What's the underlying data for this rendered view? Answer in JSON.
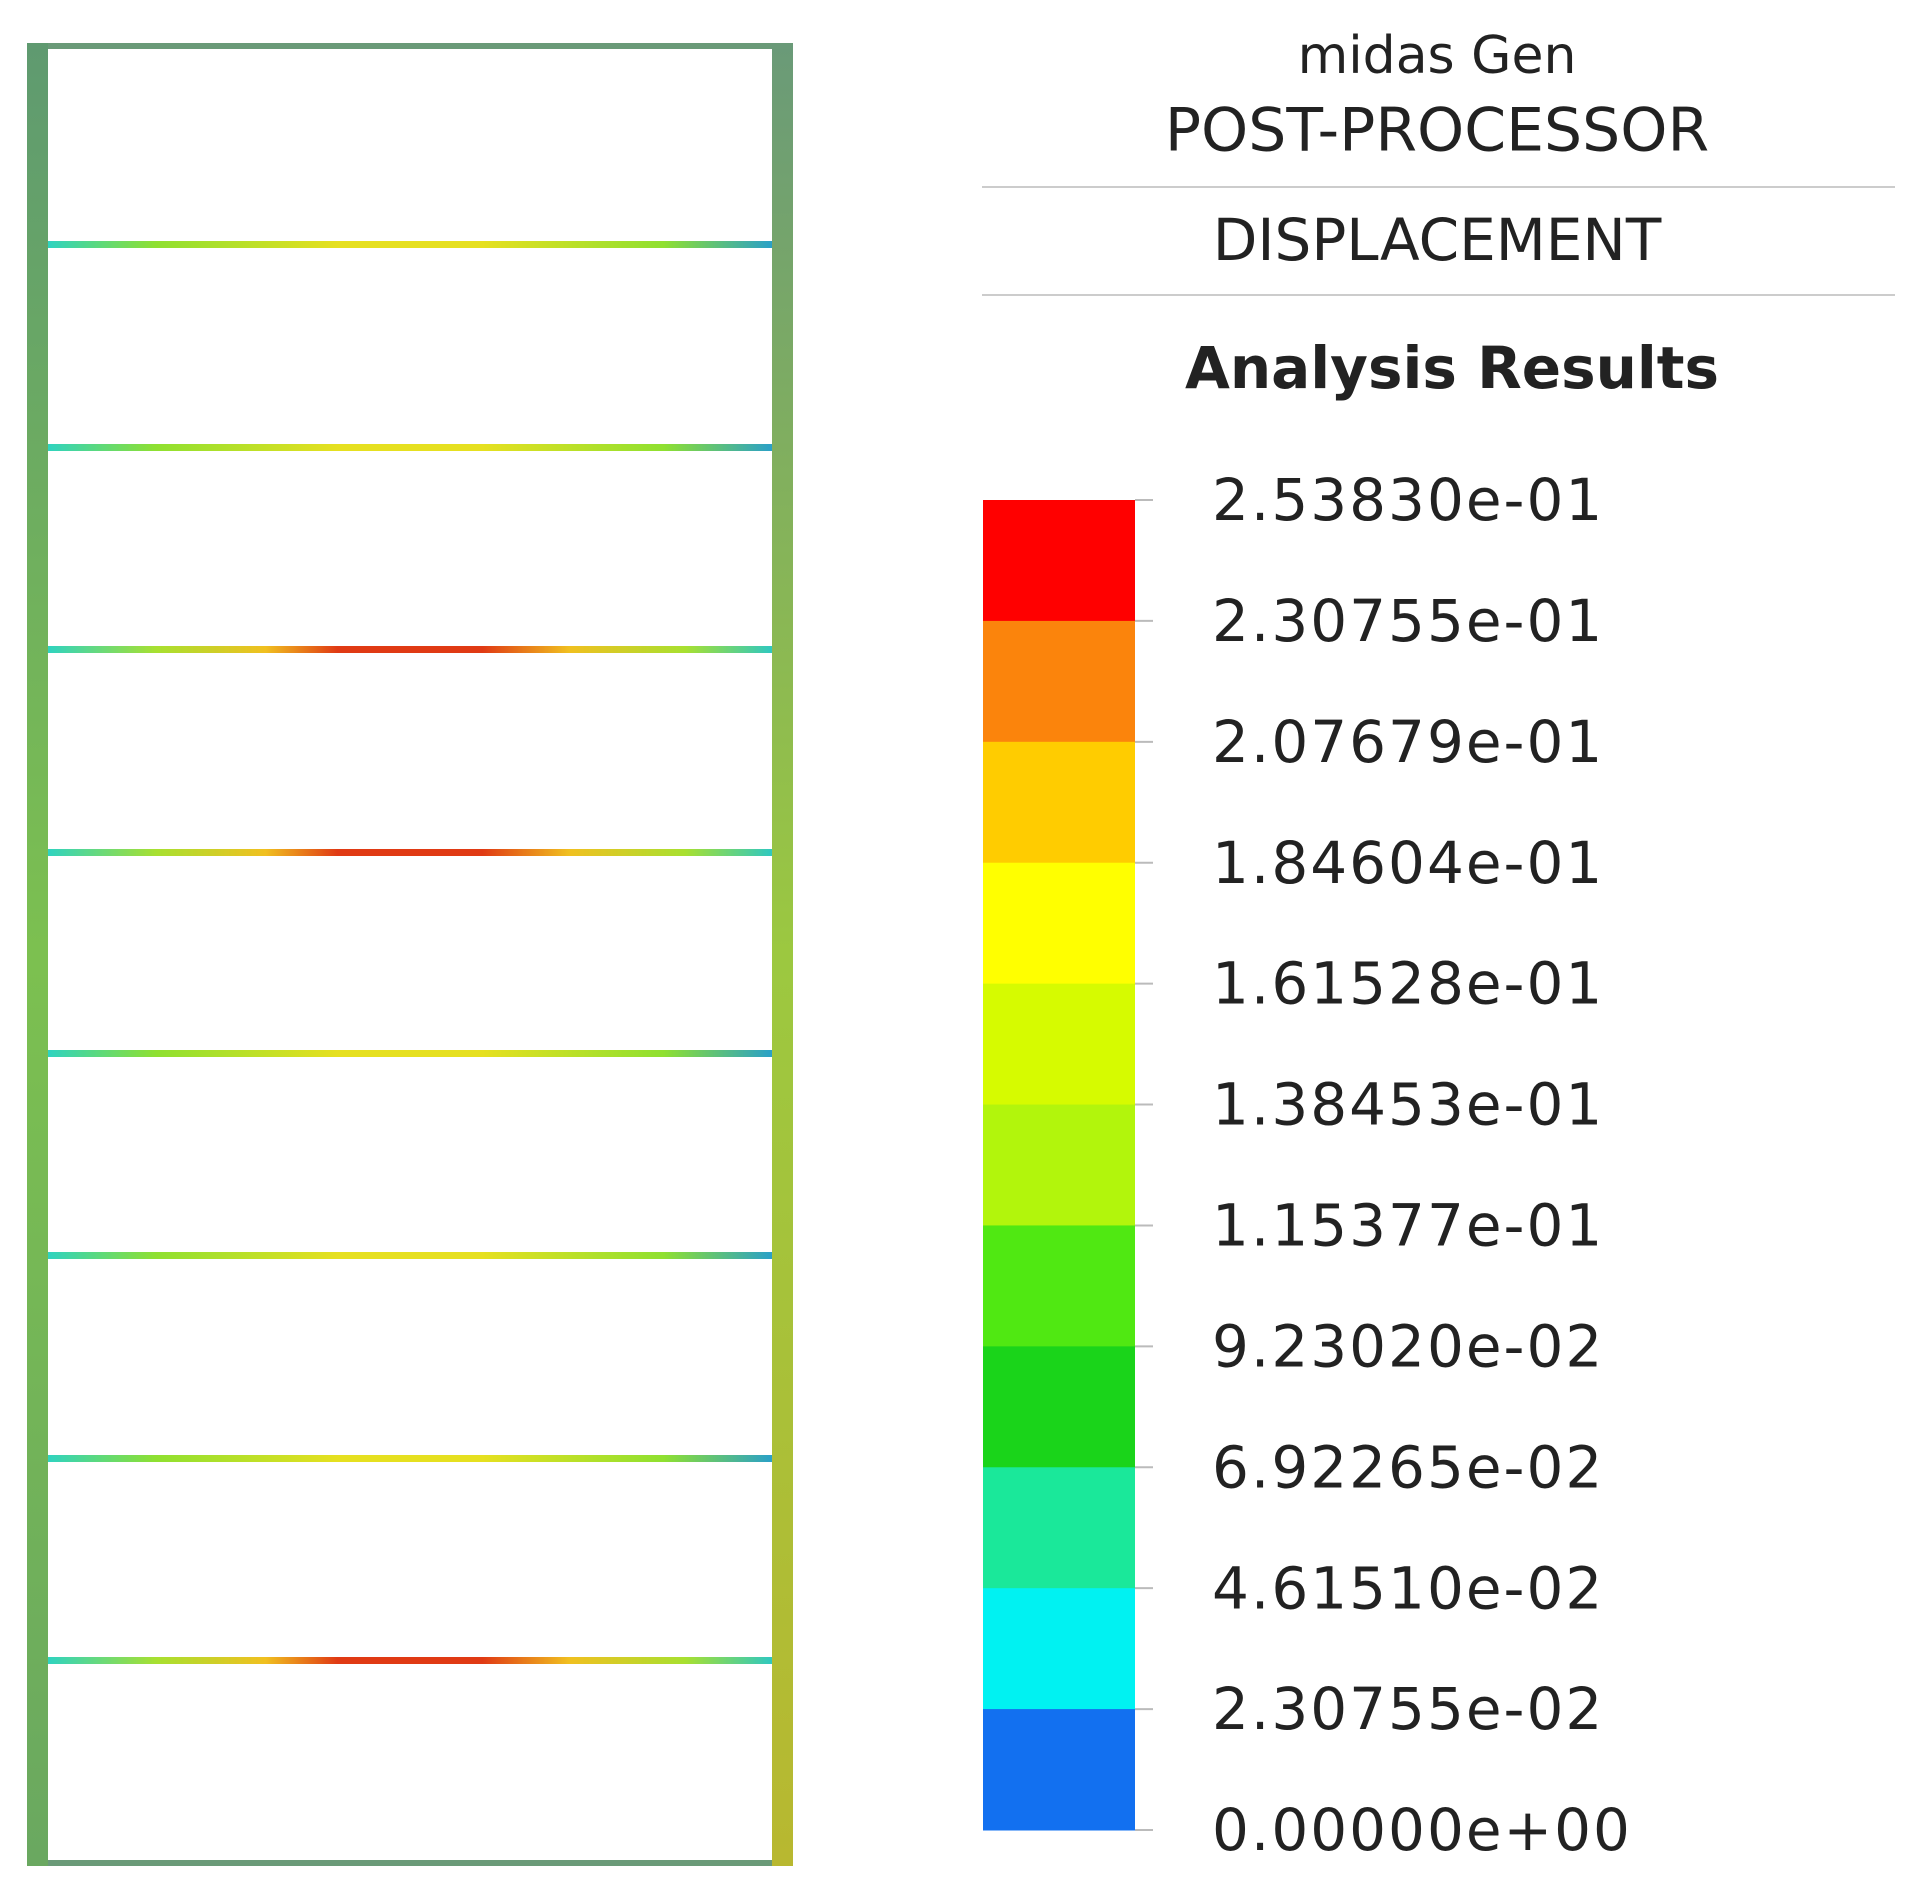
{
  "header": {
    "app": "midas Gen",
    "module": "POST-PROCESSOR",
    "result": "DISPLACEMENT"
  },
  "legend": {
    "title": "Analysis Results",
    "labels": [
      "2.53830e-01",
      "2.30755e-01",
      "2.07679e-01",
      "1.84604e-01",
      "1.61528e-01",
      "1.38453e-01",
      "1.15377e-01",
      "9.23020e-02",
      "6.92265e-02",
      "4.61510e-02",
      "2.30755e-02",
      "0.00000e+00"
    ],
    "colors": [
      "#ff0000",
      "#fb840c",
      "#ffcc00",
      "#ffff00",
      "#d6fb00",
      "#b2f50c",
      "#50e812",
      "#1ad41a",
      "#1ae89a",
      "#00f2f2",
      "#1270f0"
    ]
  }
}
